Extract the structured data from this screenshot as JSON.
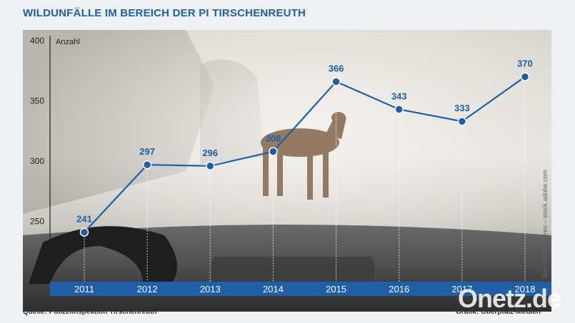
{
  "title": "WILDUNFÄLLE IM BEREICH DER PI TIRSCHENREUTH",
  "source": "Quelle: Polizeiinspektion Tirschenreuth",
  "graphic_credit": "Grafik: Oberpfalz-Medien",
  "photo_credit": "Bild: OFC Pictures – stock.adobe.com",
  "watermark": "Onetz.de",
  "colors": {
    "line": "#1f5fa8",
    "year_band": "#1f5fa8",
    "label": "#1f5fa8"
  },
  "chart_data": {
    "type": "line",
    "title": "WILDUNFÄLLE IM BEREICH DER PI TIRSCHENREUTH",
    "ylabel": "Anzahl",
    "xlabel": "",
    "categories": [
      "2011",
      "2012",
      "2013",
      "2014",
      "2015",
      "2016",
      "2017",
      "2018"
    ],
    "series": [
      {
        "values": [
          241,
          297,
          296,
          308,
          366,
          343,
          333,
          370
        ]
      }
    ],
    "ylim": [
      200,
      400
    ],
    "yticks": [
      200,
      250,
      300,
      350,
      400
    ],
    "grid": false
  }
}
